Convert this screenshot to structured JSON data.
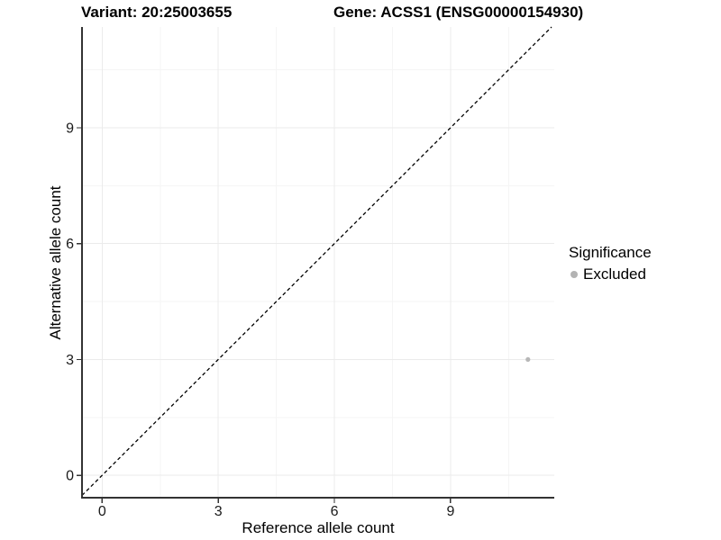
{
  "header": {
    "variant_title": "Variant: 20:25003655",
    "gene_title": "Gene: ACSS1 (ENSG00000154930)"
  },
  "chart_data": {
    "type": "scatter",
    "xlabel": "Reference allele count",
    "ylabel": "Alternative allele count",
    "x_ticks": [
      0,
      3,
      6,
      9
    ],
    "y_ticks": [
      0,
      3,
      6,
      9
    ],
    "x_minor_ticks": [
      1.5,
      4.5,
      7.5,
      10.5
    ],
    "y_minor_ticks": [
      1.5,
      4.5,
      7.5,
      10.5
    ],
    "xlim": [
      -0.52,
      11.68
    ],
    "ylim": [
      -0.58,
      11.61
    ],
    "grid": "major+minor",
    "identity_line": {
      "style": "dashed",
      "equation": "y = x",
      "color": "#000000"
    },
    "legend": {
      "title": "Significance",
      "position": "right",
      "items": [
        {
          "label": "Excluded",
          "color": "#b3b3b3"
        }
      ]
    },
    "series": [
      {
        "name": "Excluded",
        "color": "#b7b7b7",
        "points": [
          {
            "x": 11,
            "y": 3
          }
        ]
      }
    ],
    "colors": {
      "background": "#ffffff",
      "grid_major": "#ebebeb",
      "grid_minor": "#f5f5f5",
      "axis_line": "#333333",
      "tick_mark": "#333333",
      "tick_text": "#1a1a1a"
    }
  }
}
